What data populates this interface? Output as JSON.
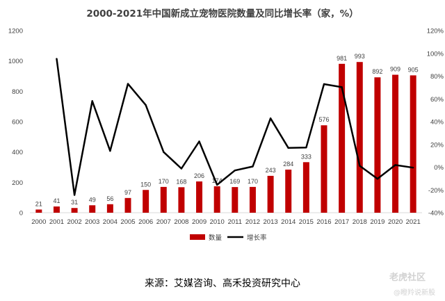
{
  "chart_data": {
    "type": "bar+line",
    "title": "2000-2021年中国新成立宠物医院数量及同比增长率（家，%）",
    "categories": [
      "2000",
      "2001",
      "2002",
      "2003",
      "2004",
      "2005",
      "2006",
      "2007",
      "2008",
      "2009",
      "2010",
      "2011",
      "2012",
      "2013",
      "2014",
      "2015",
      "2016",
      "2017",
      "2018",
      "2019",
      "2020",
      "2021"
    ],
    "series": [
      {
        "name": "数量",
        "type": "bar",
        "axis": "left",
        "color": "#c00000",
        "values": [
          21,
          41,
          31,
          49,
          56,
          97,
          150,
          170,
          168,
          206,
          174,
          169,
          170,
          243,
          284,
          333,
          576,
          981,
          993,
          892,
          909,
          905
        ]
      },
      {
        "name": "增长率",
        "type": "line",
        "axis": "right",
        "color": "#000000",
        "values": [
          null,
          95.2,
          -24.4,
          58.1,
          14.3,
          73.2,
          54.6,
          13.3,
          -1.2,
          22.6,
          -15.5,
          -2.9,
          0.6,
          42.9,
          16.9,
          17.3,
          73.0,
          70.3,
          1.2,
          -10.2,
          1.9,
          -0.4
        ]
      }
    ],
    "left_axis": {
      "ylim": [
        0,
        1200
      ],
      "ticks": [
        "0",
        "200",
        "400",
        "600",
        "800",
        "1000",
        "1200"
      ]
    },
    "right_axis": {
      "ylim": [
        -40,
        120
      ],
      "ticks": [
        "-40%",
        "-20%",
        "0%",
        "20%",
        "40%",
        "60%",
        "80%",
        "100%",
        "120%"
      ]
    },
    "legend": {
      "position": "bottom",
      "items": [
        "数量",
        "增长率"
      ]
    },
    "grid": false
  },
  "source": "来源：艾媒咨询、高禾投资研究中心",
  "watermark": {
    "line1": "老虎社区",
    "line2": "@瞪羚说新股"
  }
}
